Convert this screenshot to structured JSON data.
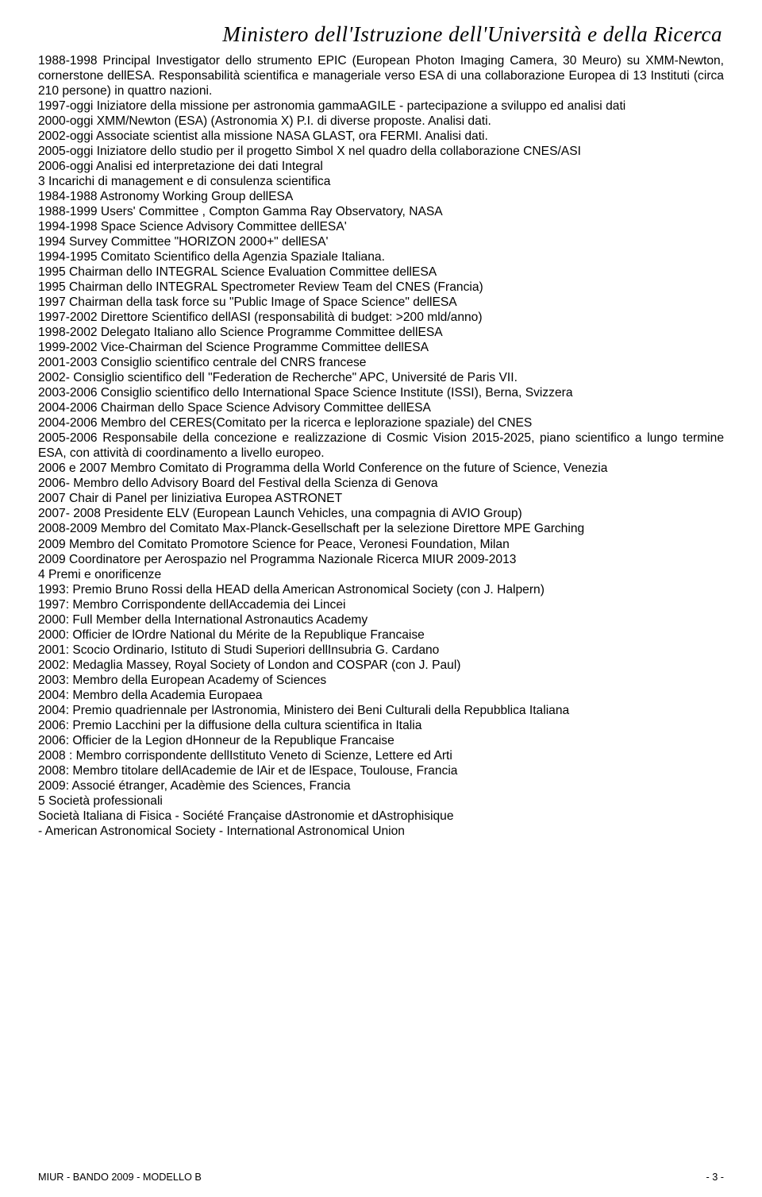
{
  "header": {
    "ministry_line": "Ministero dell'Istruzione dell'Università e della Ricerca"
  },
  "paragraphs": [
    "1988-1998 Principal Investigator dello strumento EPIC (European Photon Imaging Camera, 30 Meuro) su XMM-Newton, cornerstone dellESA. Responsabilità scientifica e manageriale verso ESA di una collaborazione Europea di 13 Instituti (circa 210 persone) in quattro nazioni.",
    "1997-oggi Iniziatore della missione per astronomia gammaAGILE - partecipazione a sviluppo ed analisi dati",
    "2000-oggi XMM/Newton (ESA) (Astronomia X) P.I. di diverse proposte. Analisi dati.",
    "2002-oggi Associate scientist alla missione NASA GLAST, ora FERMI. Analisi dati.",
    "2005-oggi Iniziatore dello studio per il progetto Simbol X nel quadro della collaborazione CNES/ASI",
    "2006-oggi Analisi ed interpretazione dei dati Integral",
    "3  Incarichi di management e di consulenza scientifica",
    "1984-1988 Astronomy Working Group dellESA",
    "1988-1999 Users' Committee , Compton Gamma Ray Observatory, NASA",
    "1994-1998 Space Science Advisory Committee dellESA'",
    "1994 Survey Committee \"HORIZON 2000+\" dellESA'",
    "1994-1995 Comitato Scientifico della Agenzia Spaziale Italiana.",
    "1995 Chairman dello INTEGRAL Science Evaluation Committee dellESA",
    "1995 Chairman dello INTEGRAL Spectrometer Review Team del CNES (Francia)",
    "1997 Chairman della task force su \"Public Image of Space Science\" dellESA",
    "1997-2002 Direttore Scientifico dellASI (responsabilità di budget: >200 mld/anno)",
    "1998-2002 Delegato Italiano allo Science Programme Committee dellESA",
    "1999-2002 Vice-Chairman del Science Programme Committee dellESA",
    "2001-2003 Consiglio scientifico centrale del CNRS francese",
    "2002- Consiglio scientifico dell \"Federation de Recherche\" APC, Université de Paris VII.",
    "2003-2006 Consiglio scientifico dello International Space Science Institute (ISSI), Berna, Svizzera",
    "2004-2006 Chairman dello Space Science Advisory Committee dellESA",
    "2004-2006 Membro del CERES(Comitato per la ricerca e leplorazione spaziale) del CNES",
    "2005-2006 Responsabile della concezione e realizzazione di Cosmic Vision 2015-2025, piano scientifico a lungo termine ESA, con attività di coordinamento a livello europeo.",
    "2006 e 2007 Membro Comitato di Programma della World Conference on the future of Science, Venezia",
    "2006- Membro dello Advisory Board del Festival della Scienza di Genova",
    "2007 Chair di Panel per liniziativa Europea ASTRONET",
    "2007- 2008 Presidente ELV (European Launch Vehicles, una compagnia di AVIO Group)",
    "2008-2009 Membro del Comitato Max-Planck-Gesellschaft per la selezione Direttore MPE Garching",
    "2009 Membro del Comitato Promotore Science for Peace, Veronesi Foundation, Milan",
    "2009 Coordinatore per Aerospazio nel Programma Nazionale Ricerca MIUR 2009-2013",
    "4  Premi e onorificenze",
    "1993: Premio Bruno Rossi della HEAD della American Astronomical Society (con J. Halpern)",
    "1997: Membro Corrispondente dellAccademia dei Lincei",
    "2000: Full Member della International Astronautics Academy",
    "2000: Officier de lOrdre National du Mérite de la Republique Francaise",
    "2001: Scocio Ordinario, Istituto di Studi Superiori dellInsubria G. Cardano",
    "2002: Medaglia Massey, Royal Society of London and COSPAR (con J. Paul)",
    "2003: Membro della European Academy of Sciences",
    "2004: Membro della Academia Europaea",
    "2004: Premio quadriennale per lAstronomia, Ministero dei Beni Culturali della Repubblica Italiana",
    "2006: Premio Lacchini per la diffusione della cultura scientifica in Italia",
    "2006: Officier de la Legion dHonneur de la Republique Francaise",
    "2008 : Membro corrispondente dellIstituto Veneto di Scienze, Lettere ed Arti",
    "2008: Membro titolare dellAcademie de lAir et de lEspace, Toulouse, Francia",
    "2009: Associé étranger, Acadèmie des Sciences, Francia",
    "5  Società professionali",
    "Società Italiana di Fisica - Société Française dAstronomie et dAstrophisique",
    "- American Astronomical Society - International Astronomical Union"
  ],
  "footer": {
    "left": "MIUR - BANDO 2009 - MODELLO B",
    "right": "- 3 -"
  }
}
